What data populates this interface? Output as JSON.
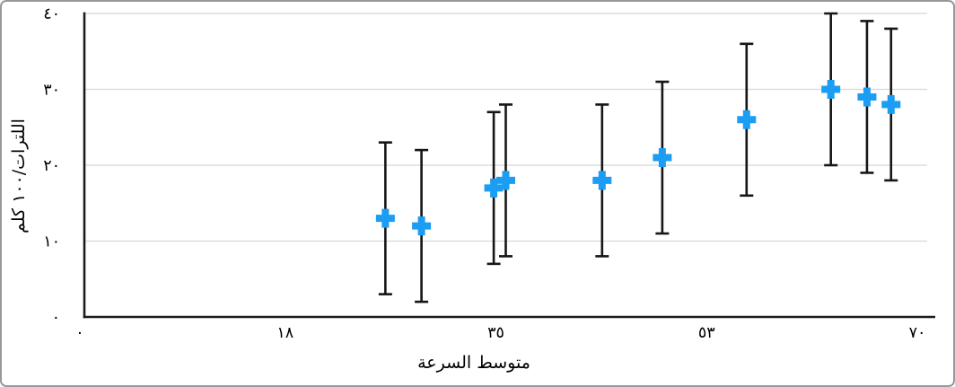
{
  "window": {
    "border_color": "#98989c",
    "background": "#ffffff"
  },
  "chart_data": {
    "type": "scatter",
    "title": "",
    "xlabel": "متوسط السرعة",
    "ylabel": "اللترات/١٠٠ كلم",
    "xlim": [
      0,
      70
    ],
    "ylim": [
      0,
      40
    ],
    "x_tick_values": [
      0,
      17.5,
      35,
      52.5,
      70
    ],
    "x_tick_labels": [
      "٠",
      "١٨",
      "٣٥",
      "٥٣",
      "٧٠"
    ],
    "y_tick_values": [
      0,
      10,
      20,
      30,
      40
    ],
    "y_tick_labels": [
      "٠",
      "١٠",
      "٢٠",
      "٣٠",
      "٤٠"
    ],
    "grid": "horizontal-only",
    "legend": "none",
    "marker": "plus",
    "error_bars": {
      "direction": "vertical",
      "plus": 10,
      "minus": 10,
      "caps": true
    },
    "points": [
      {
        "x": 25,
        "y": 13
      },
      {
        "x": 28,
        "y": 12
      },
      {
        "x": 34,
        "y": 17
      },
      {
        "x": 35,
        "y": 18
      },
      {
        "x": 43,
        "y": 18
      },
      {
        "x": 48,
        "y": 21
      },
      {
        "x": 55,
        "y": 26
      },
      {
        "x": 62,
        "y": 30
      },
      {
        "x": 65,
        "y": 29
      },
      {
        "x": 67,
        "y": 28
      }
    ],
    "colors": {
      "marker": "#1b9df3",
      "error_bar": "#161616",
      "axis": "#1c1c1c",
      "gridline": "#d8d8d8",
      "text": "#000000"
    }
  }
}
